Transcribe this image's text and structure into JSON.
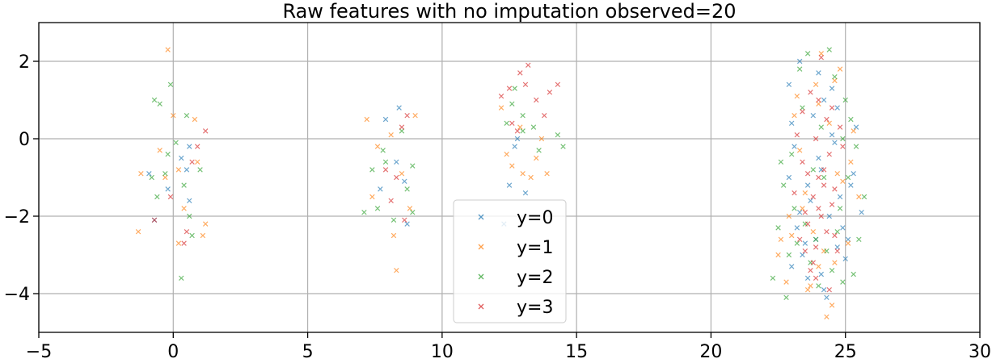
{
  "chart_data": {
    "type": "scatter",
    "title": "Raw features with no imputation observed=20",
    "xlabel": "",
    "ylabel": "",
    "xlim": [
      -5,
      30
    ],
    "ylim": [
      -5,
      3
    ],
    "xticks": [
      -5,
      0,
      5,
      10,
      15,
      20,
      25,
      30
    ],
    "yticks": [
      -4,
      -2,
      0,
      2
    ],
    "xtick_labels": [
      "−5",
      "0",
      "5",
      "10",
      "15",
      "20",
      "25",
      "30"
    ],
    "ytick_labels": [
      "−4",
      "−2",
      "0",
      "2"
    ],
    "grid": true,
    "marker": "x",
    "legend_position": "bottom-center",
    "series": [
      {
        "name": "y=0",
        "color": "#1f77b4",
        "points": [
          [
            -0.9,
            -0.9
          ],
          [
            0.6,
            -0.2
          ],
          [
            0.6,
            -1.6
          ],
          [
            0.3,
            -0.5
          ],
          [
            -0.2,
            -1.3
          ],
          [
            0.5,
            -0.8
          ],
          [
            -0.7,
            -2.1
          ],
          [
            8.4,
            0.8
          ],
          [
            7.9,
            0.5
          ],
          [
            8.7,
            -2.2
          ],
          [
            8.3,
            -0.6
          ],
          [
            7.7,
            -1.3
          ],
          [
            8.6,
            -1.1
          ],
          [
            12.7,
            -0.2
          ],
          [
            12.5,
            -1.2
          ],
          [
            13.1,
            -1.4
          ],
          [
            12.3,
            -2.2
          ],
          [
            12.8,
            0.0
          ],
          [
            23.3,
            2.0
          ],
          [
            24.5,
            1.3
          ],
          [
            24.0,
            -0.5
          ],
          [
            23.6,
            -1.2
          ],
          [
            24.9,
            -2.3
          ],
          [
            23.0,
            -3.3
          ],
          [
            24.3,
            -4.1
          ],
          [
            25.6,
            -1.9
          ],
          [
            24.7,
            0.8
          ],
          [
            23.1,
            -0.2
          ],
          [
            23.5,
            -2.7
          ],
          [
            24.1,
            -3.5
          ],
          [
            25.3,
            -0.9
          ],
          [
            22.9,
            1.4
          ],
          [
            24.2,
            -3.9
          ],
          [
            23.8,
            0.6
          ],
          [
            25.1,
            -2.6
          ],
          [
            23.7,
            -1.6
          ],
          [
            24.6,
            -0.1
          ],
          [
            23.4,
            -3.0
          ],
          [
            24.4,
            -2.0
          ],
          [
            24.0,
            1.7
          ],
          [
            25.4,
            0.3
          ],
          [
            23.2,
            -2.3
          ],
          [
            24.8,
            -1.5
          ],
          [
            22.9,
            -1.0
          ],
          [
            23.9,
            -2.6
          ],
          [
            24.5,
            0.1
          ],
          [
            23.6,
            -3.6
          ],
          [
            24.2,
            1.0
          ],
          [
            25.0,
            -3.1
          ],
          [
            23.0,
            0.4
          ],
          [
            24.7,
            -2.8
          ],
          [
            23.3,
            -1.9
          ],
          [
            24.1,
            -0.8
          ],
          [
            25.2,
            -1.2
          ]
        ]
      },
      {
        "name": "y=1",
        "color": "#ff7f0e",
        "points": [
          [
            -0.2,
            2.3
          ],
          [
            0.0,
            0.6
          ],
          [
            0.8,
            0.5
          ],
          [
            -1.2,
            -0.9
          ],
          [
            0.2,
            -0.8
          ],
          [
            -1.3,
            -2.4
          ],
          [
            0.2,
            -2.7
          ],
          [
            1.2,
            -2.2
          ],
          [
            1.1,
            -2.5
          ],
          [
            0.9,
            -0.6
          ],
          [
            -0.5,
            -0.3
          ],
          [
            0.4,
            -1.8
          ],
          [
            -0.3,
            -1.0
          ],
          [
            7.2,
            0.5
          ],
          [
            8.1,
            0.1
          ],
          [
            8.3,
            -3.4
          ],
          [
            8.2,
            -2.5
          ],
          [
            7.6,
            -0.2
          ],
          [
            9.0,
            0.6
          ],
          [
            8.5,
            -0.9
          ],
          [
            7.4,
            -1.5
          ],
          [
            8.8,
            -1.8
          ],
          [
            12.4,
            -0.4
          ],
          [
            13.0,
            -0.9
          ],
          [
            12.6,
            -0.7
          ],
          [
            13.9,
            -0.9
          ],
          [
            13.5,
            -0.5
          ],
          [
            12.9,
            0.3
          ],
          [
            13.3,
            -1.0
          ],
          [
            12.2,
            0.8
          ],
          [
            13.7,
            0.0
          ],
          [
            23.4,
            -1.8
          ],
          [
            24.3,
            -4.6
          ],
          [
            24.1,
            2.2
          ],
          [
            24.8,
            1.8
          ],
          [
            23.0,
            -2.5
          ],
          [
            24.5,
            -4.3
          ],
          [
            22.5,
            -3.0
          ],
          [
            23.7,
            -3.8
          ],
          [
            25.2,
            -0.6
          ],
          [
            24.0,
            0.9
          ],
          [
            23.1,
            0.6
          ],
          [
            22.8,
            -3.7
          ],
          [
            24.6,
            -3.2
          ],
          [
            25.5,
            -1.5
          ],
          [
            23.6,
            -3.9
          ],
          [
            24.2,
            -2.9
          ],
          [
            23.9,
            1.4
          ],
          [
            22.6,
            -2.6
          ],
          [
            24.9,
            -1.1
          ],
          [
            23.3,
            -0.3
          ],
          [
            24.4,
            0.4
          ],
          [
            25.1,
            -2.7
          ],
          [
            23.5,
            -1.4
          ],
          [
            22.9,
            -2.0
          ],
          [
            24.7,
            -0.9
          ],
          [
            23.8,
            -2.4
          ],
          [
            24.0,
            -3.3
          ],
          [
            25.3,
            0.2
          ],
          [
            23.2,
            1.1
          ],
          [
            24.6,
            1.5
          ]
        ]
      },
      {
        "name": "y=2",
        "color": "#2ca02c",
        "points": [
          [
            -0.1,
            1.4
          ],
          [
            -0.7,
            1.0
          ],
          [
            -0.5,
            0.9
          ],
          [
            0.5,
            0.6
          ],
          [
            0.3,
            -3.6
          ],
          [
            -0.3,
            -0.9
          ],
          [
            0.7,
            -2.5
          ],
          [
            1.0,
            -0.8
          ],
          [
            -0.8,
            -1.0
          ],
          [
            0.1,
            -0.1
          ],
          [
            -0.6,
            -1.5
          ],
          [
            0.4,
            -1.2
          ],
          [
            0.6,
            -2.0
          ],
          [
            -0.2,
            -0.4
          ],
          [
            7.6,
            -1.8
          ],
          [
            8.5,
            0.2
          ],
          [
            8.9,
            -1.9
          ],
          [
            7.1,
            -1.9
          ],
          [
            7.8,
            -0.3
          ],
          [
            8.9,
            -0.7
          ],
          [
            8.2,
            -2.1
          ],
          [
            7.4,
            -0.8
          ],
          [
            8.7,
            -1.3
          ],
          [
            7.9,
            -0.6
          ],
          [
            12.4,
            0.4
          ],
          [
            12.6,
            0.9
          ],
          [
            13.0,
            0.6
          ],
          [
            13.4,
            0.3
          ],
          [
            14.3,
            0.1
          ],
          [
            14.5,
            -0.2
          ],
          [
            13.0,
            0.2
          ],
          [
            12.7,
            1.3
          ],
          [
            13.6,
            -0.3
          ],
          [
            22.3,
            -3.6
          ],
          [
            22.8,
            -4.1
          ],
          [
            23.6,
            2.2
          ],
          [
            24.4,
            2.3
          ],
          [
            24.9,
            -3.7
          ],
          [
            25.3,
            -3.5
          ],
          [
            22.6,
            -0.6
          ],
          [
            23.9,
            -2.6
          ],
          [
            24.2,
            -1.0
          ],
          [
            23.1,
            -1.8
          ],
          [
            25.7,
            -1.5
          ],
          [
            23.4,
            0.8
          ],
          [
            24.7,
            -2.4
          ],
          [
            25.0,
            1.0
          ],
          [
            22.9,
            -3.0
          ],
          [
            24.5,
            -3.4
          ],
          [
            23.3,
            1.8
          ],
          [
            25.4,
            -0.2
          ],
          [
            23.7,
            -3.2
          ],
          [
            24.1,
            0.3
          ],
          [
            22.7,
            -1.2
          ],
          [
            24.8,
            -1.8
          ],
          [
            23.5,
            -2.2
          ],
          [
            25.2,
            0.5
          ],
          [
            23.0,
            -0.4
          ],
          [
            24.3,
            -2.9
          ],
          [
            25.5,
            -2.6
          ],
          [
            22.5,
            -2.3
          ],
          [
            24.6,
            1.6
          ],
          [
            23.8,
            -0.8
          ],
          [
            24.0,
            -3.8
          ],
          [
            25.1,
            -1.0
          ],
          [
            23.2,
            -2.7
          ],
          [
            24.9,
            0.0
          ]
        ]
      },
      {
        "name": "y=3",
        "color": "#d62728",
        "points": [
          [
            -0.7,
            -2.1
          ],
          [
            0.5,
            -2.4
          ],
          [
            0.4,
            -2.7
          ],
          [
            1.2,
            0.2
          ],
          [
            0.9,
            -0.2
          ],
          [
            0.7,
            -0.6
          ],
          [
            -0.1,
            -1.5
          ],
          [
            8.7,
            0.6
          ],
          [
            8.5,
            0.3
          ],
          [
            7.9,
            -0.8
          ],
          [
            8.3,
            -1.0
          ],
          [
            8.6,
            -2.1
          ],
          [
            8.1,
            -1.6
          ],
          [
            12.2,
            1.1
          ],
          [
            12.9,
            1.7
          ],
          [
            13.2,
            1.9
          ],
          [
            13.5,
            1.0
          ],
          [
            13.8,
            0.6
          ],
          [
            14.0,
            1.2
          ],
          [
            14.3,
            1.4
          ],
          [
            12.6,
            0.4
          ],
          [
            12.5,
            1.3
          ],
          [
            13.1,
            1.4
          ],
          [
            12.8,
            0.2
          ],
          [
            23.7,
            1.2
          ],
          [
            24.1,
            2.1
          ],
          [
            24.4,
            -3.9
          ],
          [
            23.9,
            -3.6
          ],
          [
            23.4,
            -0.6
          ],
          [
            24.6,
            -2.5
          ],
          [
            23.1,
            -1.4
          ],
          [
            24.0,
            -1.0
          ],
          [
            24.9,
            -0.2
          ],
          [
            23.6,
            -2.2
          ],
          [
            24.3,
            0.5
          ],
          [
            23.8,
            -3.2
          ],
          [
            24.5,
            -1.7
          ],
          [
            23.2,
            0.1
          ],
          [
            24.7,
            -2.9
          ],
          [
            23.5,
            -1.9
          ],
          [
            24.2,
            -0.8
          ],
          [
            23.9,
            -2.8
          ],
          [
            24.8,
            0.3
          ],
          [
            23.3,
            -2.6
          ],
          [
            24.0,
            1.0
          ],
          [
            24.6,
            -1.3
          ],
          [
            23.7,
            -3.4
          ],
          [
            24.1,
            -2.0
          ],
          [
            23.4,
            0.7
          ],
          [
            24.4,
            -0.4
          ],
          [
            23.8,
            -1.5
          ],
          [
            24.3,
            -2.4
          ],
          [
            23.6,
            -0.9
          ],
          [
            24.0,
            -1.8
          ],
          [
            23.9,
            0.0
          ],
          [
            24.2,
            -1.2
          ],
          [
            23.5,
            -2.9
          ],
          [
            24.5,
            0.8
          ]
        ]
      }
    ]
  }
}
